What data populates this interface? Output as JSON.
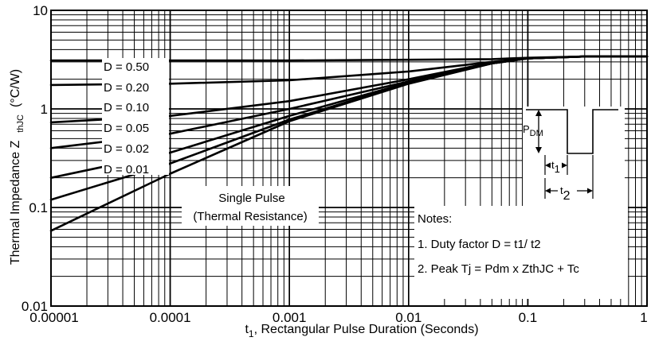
{
  "chart_data": {
    "type": "line",
    "x_scale": "log",
    "y_scale": "log",
    "xlim": [
      1e-05,
      1
    ],
    "ylim": [
      0.01,
      10
    ],
    "grid": true,
    "xlabel": "t1, Rectangular Pulse Duration (Seconds)",
    "xlabel_main": "t",
    "xlabel_sub": "1",
    "xlabel_rest": ", Rectangular Pulse Duration (Seconds)",
    "ylabel": "Thermal Impedance Z thJC (°C/W)",
    "ylabel_main": "Thermal Impedance Z",
    "ylabel_sub": "thJC",
    "ylabel_unit": "(°C/W)",
    "x_ticks": [
      {
        "value": 1e-05,
        "label": "0.00001"
      },
      {
        "value": 0.0001,
        "label": "0.0001"
      },
      {
        "value": 0.001,
        "label": "0.001"
      },
      {
        "value": 0.01,
        "label": "0.01"
      },
      {
        "value": 0.1,
        "label": "0.1"
      },
      {
        "value": 1,
        "label": "1"
      }
    ],
    "y_ticks": [
      {
        "value": 0.01,
        "label": "0.01"
      },
      {
        "value": 0.1,
        "label": "0.1"
      },
      {
        "value": 1,
        "label": "1"
      },
      {
        "value": 10,
        "label": "10"
      }
    ],
    "series": [
      {
        "name": "D = 0.50",
        "x": [
          1e-05,
          0.0001,
          0.001,
          0.01,
          0.05,
          0.1,
          0.3,
          1
        ],
        "y": [
          3.1,
          3.1,
          3.1,
          3.15,
          3.2,
          3.3,
          3.4,
          3.4
        ]
      },
      {
        "name": "D = 0.20",
        "x": [
          1e-05,
          0.0001,
          0.001,
          0.01,
          0.05,
          0.1,
          0.3,
          1
        ],
        "y": [
          1.75,
          1.8,
          1.95,
          2.4,
          3.0,
          3.25,
          3.4,
          3.4
        ]
      },
      {
        "name": "D = 0.10",
        "x": [
          1e-05,
          0.0001,
          0.001,
          0.01,
          0.05,
          0.1,
          0.3,
          1
        ],
        "y": [
          0.73,
          0.85,
          1.2,
          2.0,
          2.95,
          3.25,
          3.4,
          3.4
        ]
      },
      {
        "name": "D = 0.05",
        "x": [
          1e-05,
          0.0001,
          0.001,
          0.01,
          0.05,
          0.1,
          0.3,
          1
        ],
        "y": [
          0.4,
          0.56,
          1.0,
          1.9,
          2.9,
          3.25,
          3.4,
          3.4
        ]
      },
      {
        "name": "D = 0.02",
        "x": [
          1e-05,
          0.0001,
          0.001,
          0.01,
          0.05,
          0.1,
          0.3,
          1
        ],
        "y": [
          0.2,
          0.36,
          0.85,
          1.85,
          2.9,
          3.25,
          3.4,
          3.4
        ]
      },
      {
        "name": "D = 0.01",
        "x": [
          1e-05,
          0.0001,
          0.001,
          0.01,
          0.05,
          0.1,
          0.3,
          1
        ],
        "y": [
          0.12,
          0.28,
          0.78,
          1.82,
          2.9,
          3.25,
          3.4,
          3.4
        ]
      },
      {
        "name": "Single Pulse (Thermal Resistance)",
        "x": [
          1e-05,
          0.0001,
          0.001,
          0.01,
          0.05,
          0.1,
          0.3,
          1
        ],
        "y": [
          0.058,
          0.22,
          0.75,
          1.8,
          2.9,
          3.25,
          3.4,
          3.4
        ]
      }
    ],
    "annotations": {
      "single_pulse_line1": "Single Pulse",
      "single_pulse_line2": "(Thermal Resistance)",
      "notes_title": "Notes:",
      "note1": "1. Duty factor D =  t1/ t2",
      "note2": "2. Peak Tj = Pdm x ZthJC + Tc",
      "pdm_main": "P",
      "pdm_sub": "DM",
      "t1_main": "t",
      "t1_sub": "1",
      "t2_main": "t",
      "t2_sub": "2"
    }
  }
}
